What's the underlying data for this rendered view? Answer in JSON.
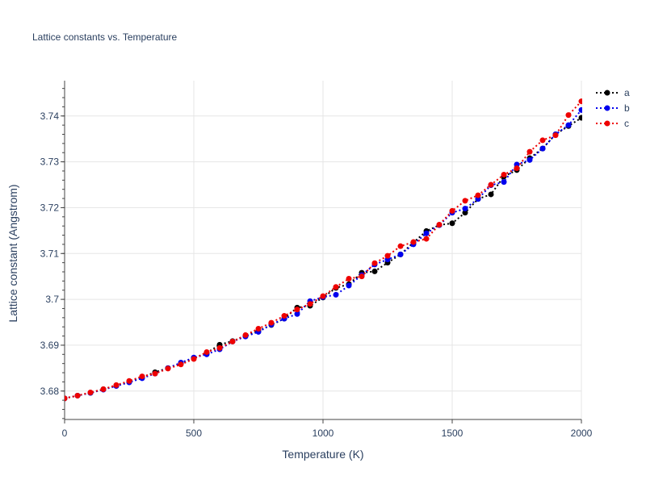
{
  "chart_data": {
    "type": "line",
    "title": "Lattice constants vs. Temperature",
    "xlabel": "Temperature (K)",
    "ylabel": "Lattice constant (Angstrom)",
    "xlim": [
      0,
      2000
    ],
    "ylim": [
      3.6738,
      3.7477
    ],
    "x_ticks": [
      0,
      500,
      1000,
      1500,
      2000
    ],
    "x_tick_labels": [
      "0",
      "500",
      "1000",
      "1500",
      "2000"
    ],
    "y_ticks": [
      3.68,
      3.69,
      3.7,
      3.71,
      3.72,
      3.73,
      3.74
    ],
    "y_tick_labels": [
      "3.68",
      "3.69",
      "3.7",
      "3.71",
      "3.72",
      "3.73",
      "3.74"
    ],
    "grid": true,
    "legend_position": "top-right",
    "line_style": "dotted",
    "marker": "circle",
    "x": [
      0,
      50,
      100,
      150,
      200,
      250,
      300,
      350,
      400,
      450,
      500,
      550,
      600,
      650,
      700,
      750,
      800,
      850,
      900,
      950,
      1000,
      1050,
      1100,
      1150,
      1200,
      1250,
      1300,
      1350,
      1400,
      1450,
      1500,
      1550,
      1600,
      1650,
      1700,
      1750,
      1800,
      1850,
      1900,
      1950,
      2000
    ],
    "series": [
      {
        "name": "a",
        "color": "#000000",
        "values": [
          3.6784,
          3.679,
          3.6796,
          3.6804,
          3.6812,
          3.682,
          3.683,
          3.6841,
          3.685,
          3.686,
          3.6872,
          3.6883,
          3.6901,
          3.6909,
          3.692,
          3.6931,
          3.6944,
          3.6958,
          3.6982,
          3.6986,
          3.7004,
          3.7025,
          3.7033,
          3.7058,
          3.7061,
          3.708,
          3.7098,
          3.7124,
          3.7149,
          3.7162,
          3.7166,
          3.7189,
          3.7219,
          3.7229,
          3.7268,
          3.7282,
          3.7308,
          3.7329,
          3.736,
          3.7378,
          3.7396
        ]
      },
      {
        "name": "b",
        "color": "#0000ee",
        "values": [
          3.6784,
          3.679,
          3.6796,
          3.6803,
          3.6811,
          3.6819,
          3.6828,
          3.6838,
          3.685,
          3.6862,
          3.6873,
          3.688,
          3.6891,
          3.6908,
          3.6919,
          3.6929,
          3.6945,
          3.6958,
          3.6968,
          3.6996,
          3.7005,
          3.701,
          3.703,
          3.7053,
          3.7076,
          3.7087,
          3.7098,
          3.712,
          3.7144,
          3.7162,
          3.7189,
          3.7198,
          3.7219,
          3.7249,
          3.7256,
          3.7294,
          3.7304,
          3.7329,
          3.736,
          3.738,
          3.7413
        ]
      },
      {
        "name": "c",
        "color": "#ee0000",
        "values": [
          3.6784,
          3.679,
          3.6797,
          3.6804,
          3.6813,
          3.6822,
          3.6832,
          3.6838,
          3.6849,
          3.6858,
          3.687,
          3.6885,
          3.6894,
          3.6908,
          3.6922,
          3.6936,
          3.6949,
          3.6964,
          3.6978,
          3.699,
          3.7007,
          3.7027,
          3.7045,
          3.705,
          3.7079,
          3.7095,
          3.7116,
          3.7125,
          3.7132,
          3.7163,
          3.7193,
          3.7215,
          3.7227,
          3.725,
          3.7272,
          3.7286,
          3.7322,
          3.7347,
          3.7358,
          3.7402,
          3.7432
        ]
      }
    ]
  }
}
